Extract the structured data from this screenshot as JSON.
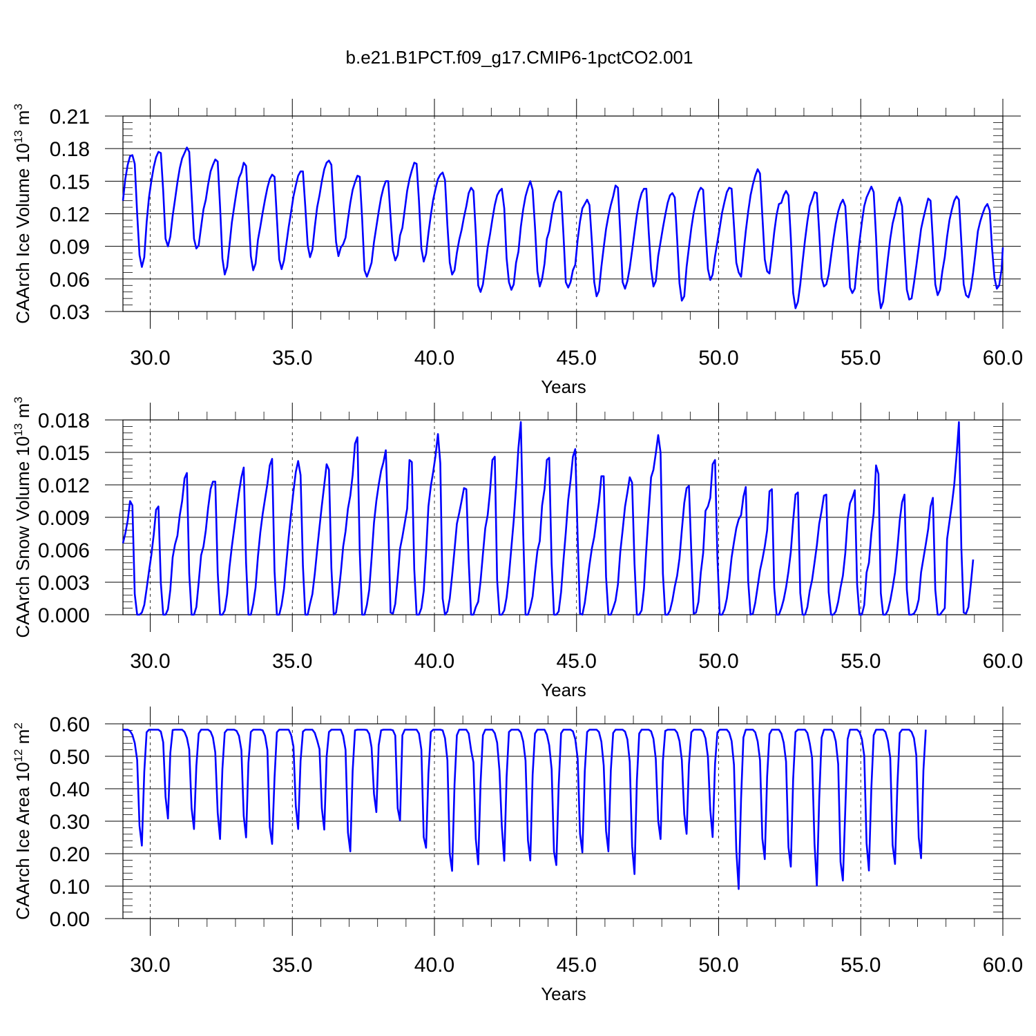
{
  "title": "b.e21.B1PCT.f09_g17.CMIP6-1pctCO2.001",
  "line_color": "#0000ff",
  "chart_data": [
    {
      "type": "line",
      "ylabel_main": "CAArch Ice Volume 10",
      "ylabel_exp": "13",
      "ylabel_unit": " m",
      "ylabel_unit_exp": "3",
      "xlabel": "Years",
      "xlim": [
        29.04,
        60.0
      ],
      "ylim": [
        0.03,
        0.21
      ],
      "xticks": [
        "30.0",
        "35.0",
        "40.0",
        "45.0",
        "50.0",
        "55.0",
        "60.0"
      ],
      "yticks": [
        "0.03",
        "0.06",
        "0.09",
        "0.12",
        "0.15",
        "0.18",
        "0.21"
      ],
      "start_year": 29.04,
      "step_years": 0.08333,
      "values": [
        0.132,
        0.152,
        0.165,
        0.173,
        0.174,
        0.166,
        0.12,
        0.082,
        0.071,
        0.08,
        0.112,
        0.135,
        0.15,
        0.163,
        0.172,
        0.177,
        0.176,
        0.141,
        0.097,
        0.09,
        0.099,
        0.118,
        0.133,
        0.149,
        0.162,
        0.171,
        0.176,
        0.181,
        0.177,
        0.138,
        0.097,
        0.088,
        0.091,
        0.108,
        0.124,
        0.133,
        0.147,
        0.159,
        0.165,
        0.17,
        0.168,
        0.127,
        0.079,
        0.064,
        0.071,
        0.091,
        0.112,
        0.127,
        0.141,
        0.153,
        0.158,
        0.167,
        0.164,
        0.124,
        0.081,
        0.068,
        0.074,
        0.096,
        0.108,
        0.121,
        0.133,
        0.144,
        0.152,
        0.156,
        0.154,
        0.116,
        0.078,
        0.069,
        0.077,
        0.092,
        0.108,
        0.122,
        0.136,
        0.146,
        0.155,
        0.159,
        0.159,
        0.127,
        0.091,
        0.08,
        0.087,
        0.108,
        0.126,
        0.137,
        0.15,
        0.161,
        0.167,
        0.169,
        0.165,
        0.128,
        0.094,
        0.081,
        0.089,
        0.092,
        0.098,
        0.115,
        0.13,
        0.142,
        0.149,
        0.155,
        0.154,
        0.116,
        0.068,
        0.062,
        0.068,
        0.075,
        0.094,
        0.108,
        0.122,
        0.135,
        0.144,
        0.15,
        0.15,
        0.117,
        0.086,
        0.077,
        0.082,
        0.1,
        0.107,
        0.124,
        0.141,
        0.152,
        0.16,
        0.167,
        0.166,
        0.132,
        0.088,
        0.076,
        0.083,
        0.102,
        0.119,
        0.133,
        0.143,
        0.152,
        0.156,
        0.158,
        0.151,
        0.109,
        0.075,
        0.064,
        0.068,
        0.084,
        0.096,
        0.105,
        0.117,
        0.127,
        0.139,
        0.144,
        0.141,
        0.102,
        0.054,
        0.048,
        0.055,
        0.071,
        0.089,
        0.101,
        0.115,
        0.128,
        0.137,
        0.141,
        0.143,
        0.125,
        0.079,
        0.057,
        0.05,
        0.055,
        0.075,
        0.085,
        0.108,
        0.124,
        0.136,
        0.144,
        0.15,
        0.142,
        0.108,
        0.067,
        0.053,
        0.06,
        0.074,
        0.097,
        0.104,
        0.118,
        0.13,
        0.136,
        0.141,
        0.14,
        0.101,
        0.057,
        0.052,
        0.057,
        0.068,
        0.073,
        0.096,
        0.113,
        0.125,
        0.129,
        0.133,
        0.128,
        0.095,
        0.057,
        0.044,
        0.049,
        0.071,
        0.089,
        0.106,
        0.118,
        0.128,
        0.136,
        0.146,
        0.144,
        0.103,
        0.057,
        0.051,
        0.058,
        0.07,
        0.086,
        0.103,
        0.119,
        0.131,
        0.139,
        0.143,
        0.143,
        0.104,
        0.069,
        0.053,
        0.058,
        0.081,
        0.094,
        0.107,
        0.119,
        0.13,
        0.137,
        0.139,
        0.135,
        0.097,
        0.056,
        0.04,
        0.044,
        0.071,
        0.089,
        0.107,
        0.121,
        0.131,
        0.14,
        0.144,
        0.142,
        0.104,
        0.069,
        0.059,
        0.064,
        0.081,
        0.094,
        0.107,
        0.121,
        0.131,
        0.14,
        0.144,
        0.143,
        0.109,
        0.075,
        0.066,
        0.062,
        0.083,
        0.104,
        0.122,
        0.137,
        0.147,
        0.155,
        0.161,
        0.157,
        0.118,
        0.078,
        0.067,
        0.065,
        0.083,
        0.103,
        0.119,
        0.129,
        0.13,
        0.137,
        0.141,
        0.137,
        0.098,
        0.047,
        0.033,
        0.039,
        0.055,
        0.076,
        0.096,
        0.113,
        0.127,
        0.133,
        0.14,
        0.139,
        0.103,
        0.061,
        0.053,
        0.055,
        0.064,
        0.081,
        0.097,
        0.111,
        0.122,
        0.129,
        0.133,
        0.127,
        0.091,
        0.052,
        0.047,
        0.051,
        0.073,
        0.094,
        0.112,
        0.127,
        0.135,
        0.14,
        0.145,
        0.14,
        0.099,
        0.05,
        0.033,
        0.039,
        0.058,
        0.079,
        0.097,
        0.111,
        0.12,
        0.13,
        0.135,
        0.127,
        0.087,
        0.05,
        0.041,
        0.042,
        0.056,
        0.072,
        0.089,
        0.106,
        0.116,
        0.125,
        0.134,
        0.132,
        0.095,
        0.055,
        0.045,
        0.05,
        0.067,
        0.08,
        0.099,
        0.114,
        0.124,
        0.132,
        0.136,
        0.133,
        0.094,
        0.055,
        0.045,
        0.043,
        0.051,
        0.066,
        0.084,
        0.104,
        0.113,
        0.12,
        0.126,
        0.129,
        0.123,
        0.088,
        0.061,
        0.051,
        0.054,
        0.069,
        0.089
      ]
    },
    {
      "type": "line",
      "ylabel_main": "CAArch Snow Volume 10",
      "ylabel_exp": "13",
      "ylabel_unit": " m",
      "ylabel_unit_exp": "3",
      "xlabel": "Years",
      "xlim": [
        29.04,
        60.0
      ],
      "ylim": [
        0.0,
        0.018
      ],
      "xticks": [
        "30.0",
        "35.0",
        "40.0",
        "45.0",
        "50.0",
        "55.0",
        "60.0"
      ],
      "yticks": [
        "0.000",
        "0.003",
        "0.006",
        "0.009",
        "0.012",
        "0.015",
        "0.018"
      ],
      "start_year": 29.04,
      "step_years": 0.08333,
      "values": [
        0.0066,
        0.0075,
        0.0087,
        0.0105,
        0.0101,
        0.0019,
        0.0,
        0.0,
        0.0002,
        0.0009,
        0.0024,
        0.004,
        0.0055,
        0.0074,
        0.0097,
        0.01,
        0.0029,
        0.0,
        0.0,
        0.0005,
        0.0023,
        0.0053,
        0.0065,
        0.0073,
        0.0092,
        0.0105,
        0.0126,
        0.0131,
        0.0038,
        0.0,
        0.0,
        0.0007,
        0.003,
        0.0055,
        0.0063,
        0.0078,
        0.0099,
        0.0116,
        0.0123,
        0.0123,
        0.0039,
        0.0,
        0.0,
        0.0004,
        0.0019,
        0.0044,
        0.0063,
        0.008,
        0.0097,
        0.0113,
        0.0127,
        0.0136,
        0.0048,
        0.0,
        0.0,
        0.001,
        0.0025,
        0.0054,
        0.0076,
        0.0093,
        0.0107,
        0.0121,
        0.0138,
        0.0144,
        0.004,
        0.0,
        0.0,
        0.0009,
        0.0024,
        0.0048,
        0.0072,
        0.0094,
        0.0114,
        0.0132,
        0.0142,
        0.0129,
        0.0045,
        0.0,
        0.0,
        0.001,
        0.0019,
        0.0038,
        0.006,
        0.0081,
        0.0101,
        0.012,
        0.0139,
        0.0134,
        0.0043,
        0.0,
        0.0002,
        0.0018,
        0.0039,
        0.0063,
        0.0077,
        0.0098,
        0.011,
        0.0129,
        0.0158,
        0.0164,
        0.0058,
        0.0,
        0.0,
        0.0009,
        0.0023,
        0.0052,
        0.0085,
        0.0105,
        0.012,
        0.0133,
        0.0141,
        0.0152,
        0.0085,
        0.0002,
        0.0001,
        0.001,
        0.0034,
        0.0061,
        0.0072,
        0.0085,
        0.0098,
        0.0143,
        0.0141,
        0.0042,
        0.0,
        0.0,
        0.0006,
        0.0022,
        0.0057,
        0.01,
        0.0119,
        0.0132,
        0.0147,
        0.0167,
        0.014,
        0.0015,
        0.0,
        0.0003,
        0.0015,
        0.0036,
        0.006,
        0.0084,
        0.0094,
        0.0105,
        0.0117,
        0.0116,
        0.005,
        0.0,
        0.0,
        0.0007,
        0.0012,
        0.0031,
        0.0056,
        0.008,
        0.0092,
        0.0114,
        0.0143,
        0.0146,
        0.0032,
        0.0,
        0.0,
        0.0004,
        0.0016,
        0.0036,
        0.0062,
        0.0087,
        0.0118,
        0.0154,
        0.0178,
        0.0076,
        0.0,
        0.0,
        0.0007,
        0.0017,
        0.0039,
        0.0059,
        0.0068,
        0.0101,
        0.0116,
        0.0143,
        0.0145,
        0.0047,
        0.0,
        0.0,
        0.0003,
        0.0021,
        0.005,
        0.0076,
        0.0106,
        0.0124,
        0.0146,
        0.0153,
        0.0071,
        0.0001,
        0.0,
        0.0011,
        0.0028,
        0.0046,
        0.0061,
        0.0072,
        0.0088,
        0.0104,
        0.0128,
        0.0128,
        0.0035,
        0.0,
        0.0,
        0.0006,
        0.0013,
        0.0028,
        0.0058,
        0.0078,
        0.01,
        0.0113,
        0.0127,
        0.0122,
        0.0047,
        0.0,
        0.0,
        0.0004,
        0.0024,
        0.0061,
        0.0094,
        0.0127,
        0.0134,
        0.0149,
        0.0166,
        0.015,
        0.0038,
        0.0,
        0.0,
        0.0004,
        0.0013,
        0.0026,
        0.0036,
        0.0052,
        0.0078,
        0.0103,
        0.0117,
        0.0119,
        0.0057,
        0.0001,
        0.0002,
        0.0012,
        0.0039,
        0.0057,
        0.0096,
        0.01,
        0.0108,
        0.0139,
        0.0143,
        0.0053,
        0.0,
        0.0,
        0.0005,
        0.0015,
        0.0032,
        0.0053,
        0.0067,
        0.008,
        0.0088,
        0.0092,
        0.0109,
        0.0118,
        0.0031,
        0.0,
        0.0001,
        0.0011,
        0.0026,
        0.0041,
        0.0051,
        0.0063,
        0.0078,
        0.0114,
        0.0116,
        0.0025,
        0.0,
        0.0,
        0.0006,
        0.0014,
        0.0025,
        0.004,
        0.0058,
        0.0087,
        0.0111,
        0.0113,
        0.002,
        0.0,
        0.0,
        0.0007,
        0.0022,
        0.0032,
        0.0048,
        0.0064,
        0.0084,
        0.0096,
        0.011,
        0.0111,
        0.0021,
        0.0,
        0.0,
        0.0003,
        0.0012,
        0.0025,
        0.0036,
        0.0057,
        0.0088,
        0.0103,
        0.0108,
        0.0115,
        0.0028,
        0.0,
        0.0,
        0.0009,
        0.0039,
        0.0048,
        0.0075,
        0.0094,
        0.0138,
        0.013,
        0.002,
        0.0,
        0.0,
        0.0004,
        0.0013,
        0.0025,
        0.0039,
        0.0061,
        0.0087,
        0.0104,
        0.0111,
        0.0023,
        0.0,
        0.0,
        0.0001,
        0.0005,
        0.0014,
        0.0039,
        0.0052,
        0.0065,
        0.0079,
        0.01,
        0.0108,
        0.0023,
        0.0,
        0.0,
        0.0003,
        0.0006,
        0.007,
        0.0086,
        0.0102,
        0.012,
        0.0147,
        0.0178,
        0.0062,
        0.0002,
        0.0001,
        0.0007,
        0.0028,
        0.0051
      ]
    },
    {
      "type": "line",
      "ylabel_main": "CAArch Ice Area 10",
      "ylabel_exp": "12",
      "ylabel_unit": " m",
      "ylabel_unit_exp": "2",
      "xlabel": "Years",
      "xlim": [
        29.04,
        60.0
      ],
      "ylim": [
        0.0,
        0.6
      ],
      "xticks": [
        "30.0",
        "35.0",
        "40.0",
        "45.0",
        "50.0",
        "55.0",
        "60.0"
      ],
      "yticks": [
        "0.00",
        "0.10",
        "0.20",
        "0.30",
        "0.40",
        "0.50",
        "0.60"
      ],
      "start_year": 29.04,
      "step_years": 0.08333,
      "values": [
        0.582,
        0.582,
        0.582,
        0.578,
        0.566,
        0.541,
        0.489,
        0.286,
        0.225,
        0.452,
        0.574,
        0.582,
        0.582,
        0.582,
        0.582,
        0.582,
        0.576,
        0.543,
        0.375,
        0.308,
        0.51,
        0.581,
        0.582,
        0.582,
        0.582,
        0.582,
        0.575,
        0.557,
        0.521,
        0.34,
        0.276,
        0.47,
        0.57,
        0.582,
        0.582,
        0.582,
        0.582,
        0.576,
        0.558,
        0.512,
        0.326,
        0.245,
        0.46,
        0.573,
        0.582,
        0.582,
        0.582,
        0.582,
        0.578,
        0.563,
        0.519,
        0.316,
        0.25,
        0.48,
        0.575,
        0.582,
        0.582,
        0.582,
        0.582,
        0.58,
        0.563,
        0.519,
        0.282,
        0.23,
        0.434,
        0.574,
        0.582,
        0.582,
        0.582,
        0.582,
        0.582,
        0.566,
        0.53,
        0.346,
        0.276,
        0.486,
        0.576,
        0.582,
        0.582,
        0.582,
        0.582,
        0.572,
        0.549,
        0.522,
        0.34,
        0.274,
        0.498,
        0.575,
        0.582,
        0.582,
        0.582,
        0.582,
        0.582,
        0.563,
        0.52,
        0.265,
        0.207,
        0.455,
        0.58,
        0.582,
        0.582,
        0.582,
        0.582,
        0.581,
        0.569,
        0.527,
        0.384,
        0.328,
        0.534,
        0.58,
        0.582,
        0.582,
        0.582,
        0.582,
        0.58,
        0.564,
        0.34,
        0.302,
        0.565,
        0.582,
        0.582,
        0.582,
        0.582,
        0.582,
        0.582,
        0.57,
        0.52,
        0.251,
        0.218,
        0.446,
        0.575,
        0.582,
        0.582,
        0.582,
        0.582,
        0.58,
        0.556,
        0.488,
        0.2,
        0.147,
        0.413,
        0.565,
        0.582,
        0.582,
        0.582,
        0.582,
        0.57,
        0.519,
        0.481,
        0.245,
        0.167,
        0.417,
        0.565,
        0.582,
        0.582,
        0.582,
        0.582,
        0.571,
        0.542,
        0.455,
        0.283,
        0.178,
        0.436,
        0.575,
        0.582,
        0.582,
        0.582,
        0.582,
        0.573,
        0.546,
        0.487,
        0.241,
        0.179,
        0.443,
        0.57,
        0.582,
        0.582,
        0.582,
        0.582,
        0.567,
        0.534,
        0.46,
        0.206,
        0.165,
        0.41,
        0.571,
        0.582,
        0.582,
        0.582,
        0.582,
        0.577,
        0.553,
        0.493,
        0.261,
        0.204,
        0.454,
        0.575,
        0.582,
        0.582,
        0.582,
        0.582,
        0.575,
        0.545,
        0.472,
        0.27,
        0.207,
        0.456,
        0.572,
        0.582,
        0.582,
        0.582,
        0.582,
        0.576,
        0.552,
        0.483,
        0.223,
        0.137,
        0.425,
        0.57,
        0.582,
        0.582,
        0.582,
        0.582,
        0.577,
        0.554,
        0.492,
        0.301,
        0.245,
        0.486,
        0.578,
        0.582,
        0.582,
        0.582,
        0.582,
        0.573,
        0.547,
        0.489,
        0.322,
        0.261,
        0.475,
        0.574,
        0.582,
        0.582,
        0.582,
        0.582,
        0.576,
        0.555,
        0.498,
        0.335,
        0.251,
        0.477,
        0.574,
        0.582,
        0.582,
        0.582,
        0.582,
        0.573,
        0.547,
        0.474,
        0.21,
        0.091,
        0.37,
        0.558,
        0.582,
        0.582,
        0.582,
        0.582,
        0.574,
        0.546,
        0.488,
        0.246,
        0.183,
        0.437,
        0.568,
        0.582,
        0.582,
        0.582,
        0.582,
        0.57,
        0.542,
        0.484,
        0.22,
        0.16,
        0.43,
        0.575,
        0.582,
        0.582,
        0.582,
        0.582,
        0.572,
        0.54,
        0.495,
        0.231,
        0.101,
        0.367,
        0.558,
        0.582,
        0.582,
        0.582,
        0.582,
        0.574,
        0.546,
        0.476,
        0.175,
        0.117,
        0.337,
        0.553,
        0.582,
        0.582,
        0.582,
        0.582,
        0.575,
        0.553,
        0.502,
        0.232,
        0.148,
        0.401,
        0.565,
        0.582,
        0.582,
        0.582,
        0.582,
        0.575,
        0.547,
        0.495,
        0.227,
        0.168,
        0.41,
        0.572,
        0.582,
        0.582,
        0.582,
        0.582,
        0.575,
        0.556,
        0.503,
        0.25,
        0.186,
        0.456,
        0.582
      ]
    }
  ]
}
